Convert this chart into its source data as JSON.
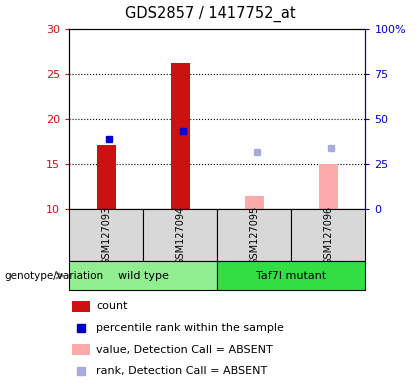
{
  "title": "GDS2857 / 1417752_at",
  "samples": [
    "GSM127093",
    "GSM127094",
    "GSM127095",
    "GSM127096"
  ],
  "groups": [
    {
      "name": "wild type",
      "color": "#90ee90",
      "start": 0,
      "end": 2
    },
    {
      "name": "Taf7l mutant",
      "color": "#33dd44",
      "start": 2,
      "end": 4
    }
  ],
  "bar_bottom": 10,
  "ylim_left": [
    10,
    30
  ],
  "ylim_right": [
    0,
    100
  ],
  "yticks_left": [
    10,
    15,
    20,
    25,
    30
  ],
  "yticks_right": [
    0,
    25,
    50,
    75,
    100
  ],
  "ytick_labels_left": [
    "10",
    "15",
    "20",
    "25",
    "30"
  ],
  "ytick_labels_right": [
    "0",
    "25",
    "50",
    "75",
    "100%"
  ],
  "count_values": [
    17.1,
    26.2,
    null,
    null
  ],
  "percentile_values": [
    17.8,
    18.7,
    null,
    null
  ],
  "absent_value_values": [
    null,
    null,
    11.5,
    15.0
  ],
  "absent_rank_values": [
    null,
    null,
    16.3,
    16.8
  ],
  "count_color": "#cc1111",
  "percentile_color": "#0000cc",
  "absent_value_color": "#ffaaaa",
  "absent_rank_color": "#aaaadd",
  "bg_color": "#d8d8d8",
  "label_color_left": "#cc1111",
  "label_color_right": "#0000cc",
  "grid_dotted_at": [
    15,
    20,
    25
  ],
  "legend_labels": [
    "count",
    "percentile rank within the sample",
    "value, Detection Call = ABSENT",
    "rank, Detection Call = ABSENT"
  ]
}
